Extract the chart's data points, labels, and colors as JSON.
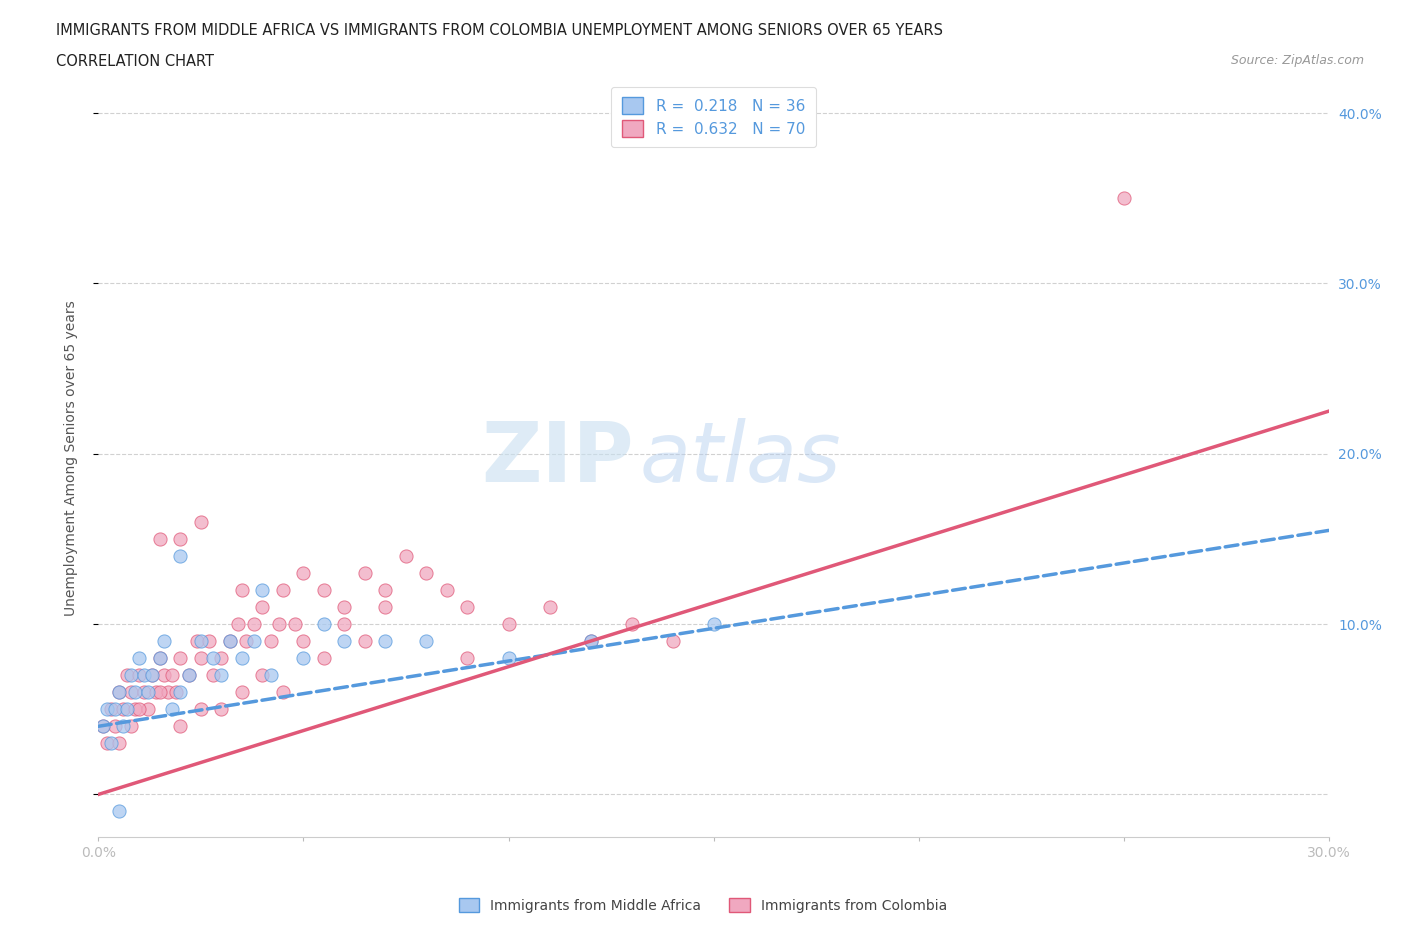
{
  "title_line1": "IMMIGRANTS FROM MIDDLE AFRICA VS IMMIGRANTS FROM COLOMBIA UNEMPLOYMENT AMONG SENIORS OVER 65 YEARS",
  "title_line2": "CORRELATION CHART",
  "source": "Source: ZipAtlas.com",
  "ylabel": "Unemployment Among Seniors over 65 years",
  "xlim": [
    0.0,
    0.3
  ],
  "ylim": [
    -0.025,
    0.42
  ],
  "R_blue": 0.218,
  "N_blue": 36,
  "R_pink": 0.632,
  "N_pink": 70,
  "color_blue": "#a8c8f0",
  "color_pink": "#f0a8c0",
  "line_blue": "#5599dd",
  "line_pink": "#e05878",
  "watermark_zip": "ZIP",
  "watermark_atlas": "atlas",
  "legend_label_blue": "Immigrants from Middle Africa",
  "legend_label_pink": "Immigrants from Colombia",
  "blue_line_x": [
    0.0,
    0.3
  ],
  "blue_line_y": [
    0.04,
    0.155
  ],
  "pink_line_x": [
    0.0,
    0.3
  ],
  "pink_line_y": [
    0.0,
    0.225
  ],
  "blue_scatter_x": [
    0.001,
    0.002,
    0.003,
    0.004,
    0.005,
    0.006,
    0.007,
    0.008,
    0.009,
    0.01,
    0.011,
    0.012,
    0.013,
    0.015,
    0.016,
    0.018,
    0.02,
    0.022,
    0.025,
    0.028,
    0.03,
    0.032,
    0.035,
    0.038,
    0.04,
    0.042,
    0.05,
    0.055,
    0.06,
    0.07,
    0.08,
    0.1,
    0.12,
    0.15,
    0.02,
    0.005
  ],
  "blue_scatter_y": [
    0.04,
    0.05,
    0.03,
    0.05,
    0.06,
    0.04,
    0.05,
    0.07,
    0.06,
    0.08,
    0.07,
    0.06,
    0.07,
    0.08,
    0.09,
    0.05,
    0.06,
    0.07,
    0.09,
    0.08,
    0.07,
    0.09,
    0.08,
    0.09,
    0.12,
    0.07,
    0.08,
    0.1,
    0.09,
    0.09,
    0.09,
    0.08,
    0.09,
    0.1,
    0.14,
    -0.01
  ],
  "pink_scatter_x": [
    0.001,
    0.002,
    0.003,
    0.004,
    0.005,
    0.006,
    0.007,
    0.008,
    0.009,
    0.01,
    0.011,
    0.012,
    0.013,
    0.014,
    0.015,
    0.016,
    0.017,
    0.018,
    0.019,
    0.02,
    0.022,
    0.024,
    0.025,
    0.027,
    0.028,
    0.03,
    0.032,
    0.034,
    0.035,
    0.036,
    0.038,
    0.04,
    0.042,
    0.044,
    0.045,
    0.048,
    0.05,
    0.055,
    0.06,
    0.065,
    0.07,
    0.075,
    0.08,
    0.085,
    0.09,
    0.1,
    0.11,
    0.12,
    0.13,
    0.14,
    0.005,
    0.008,
    0.01,
    0.015,
    0.02,
    0.025,
    0.03,
    0.035,
    0.04,
    0.045,
    0.05,
    0.055,
    0.06,
    0.065,
    0.07,
    0.015,
    0.02,
    0.025,
    0.25,
    0.09
  ],
  "pink_scatter_y": [
    0.04,
    0.03,
    0.05,
    0.04,
    0.06,
    0.05,
    0.07,
    0.06,
    0.05,
    0.07,
    0.06,
    0.05,
    0.07,
    0.06,
    0.08,
    0.07,
    0.06,
    0.07,
    0.06,
    0.08,
    0.07,
    0.09,
    0.08,
    0.09,
    0.07,
    0.08,
    0.09,
    0.1,
    0.12,
    0.09,
    0.1,
    0.11,
    0.09,
    0.1,
    0.12,
    0.1,
    0.13,
    0.12,
    0.11,
    0.13,
    0.12,
    0.14,
    0.13,
    0.12,
    0.11,
    0.1,
    0.11,
    0.09,
    0.1,
    0.09,
    0.03,
    0.04,
    0.05,
    0.06,
    0.04,
    0.05,
    0.05,
    0.06,
    0.07,
    0.06,
    0.09,
    0.08,
    0.1,
    0.09,
    0.11,
    0.15,
    0.15,
    0.16,
    0.35,
    0.08
  ]
}
